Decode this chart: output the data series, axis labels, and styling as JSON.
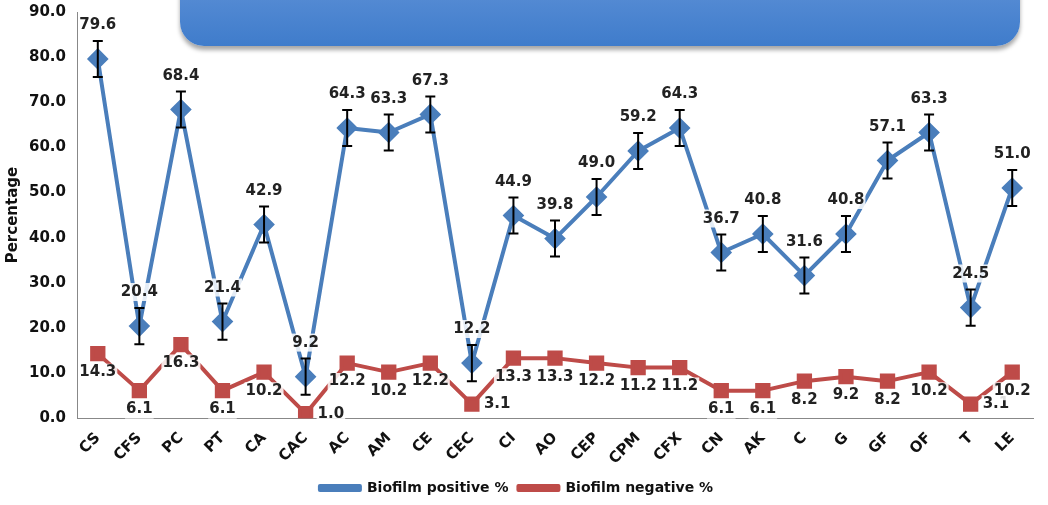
{
  "chart_data": {
    "type": "line",
    "ylabel": "Percentage",
    "categories": [
      "CS",
      "CFS",
      "PC",
      "PT",
      "CA",
      "CAC",
      "AC",
      "AM",
      "CE",
      "CEC",
      "CI",
      "AO",
      "CEP",
      "CPM",
      "CFX",
      "CN",
      "AK",
      "C",
      "G",
      "GF",
      "OF",
      "T",
      "LE"
    ],
    "series": [
      {
        "name": "Biofilm positive %",
        "color": "#4a7ebb",
        "marker": "diamond",
        "values": [
          79.6,
          20.4,
          68.4,
          21.4,
          42.9,
          9.2,
          64.3,
          63.3,
          67.3,
          12.2,
          44.9,
          39.8,
          49.0,
          59.2,
          64.3,
          36.7,
          40.8,
          31.6,
          40.8,
          57.1,
          63.3,
          24.5,
          51.0
        ],
        "errors": [
          4,
          4,
          4,
          4,
          4,
          4,
          4,
          4,
          4,
          4,
          4,
          4,
          4,
          4,
          4,
          4,
          4,
          4,
          4,
          4,
          4,
          4,
          4
        ],
        "value_labels": [
          "79.6",
          "20.4",
          "68.4",
          "21.4",
          "42.9",
          "9.2",
          "64.3",
          "63.3",
          "67.3",
          "12.2",
          "44.9",
          "39.8",
          "49.0",
          "59.2",
          "64.3",
          "36.7",
          "40.8",
          "31.6",
          "40.8",
          "57.1",
          "63.3",
          "24.5",
          "51.0"
        ]
      },
      {
        "name": "Biofilm negative %",
        "color": "#be4b48",
        "marker": "square",
        "values": [
          14.3,
          6.1,
          16.3,
          6.1,
          10.2,
          1.0,
          12.2,
          10.2,
          12.2,
          3.1,
          13.3,
          13.3,
          12.2,
          11.2,
          11.2,
          6.1,
          6.1,
          8.2,
          9.2,
          8.2,
          10.2,
          3.1,
          10.2
        ],
        "value_labels": [
          "14.3",
          "6.1",
          "16.3",
          "6.1",
          "10.2",
          "1.0",
          "12.2",
          "10.2",
          "12.2",
          "3.1",
          "13.3",
          "13.3",
          "12.2",
          "11.2",
          "11.2",
          "6.1",
          "6.1",
          "8.2",
          "9.2",
          "8.2",
          "10.2",
          "3.1",
          "10.2"
        ]
      }
    ],
    "ylim": [
      0,
      90
    ],
    "yticks": [
      {
        "value": 0,
        "label": "0.0"
      },
      {
        "value": 10,
        "label": "10.0"
      },
      {
        "value": 20,
        "label": "20.0"
      },
      {
        "value": 30,
        "label": "30.0"
      },
      {
        "value": 40,
        "label": "40.0"
      },
      {
        "value": 50,
        "label": "50.0"
      },
      {
        "value": 60,
        "label": "60.0"
      },
      {
        "value": 70,
        "label": "70.0"
      },
      {
        "value": 80,
        "label": "80.0"
      },
      {
        "value": 90,
        "label": "90.0"
      }
    ],
    "grid": false,
    "legend": "bottom",
    "line_style": "solid"
  }
}
